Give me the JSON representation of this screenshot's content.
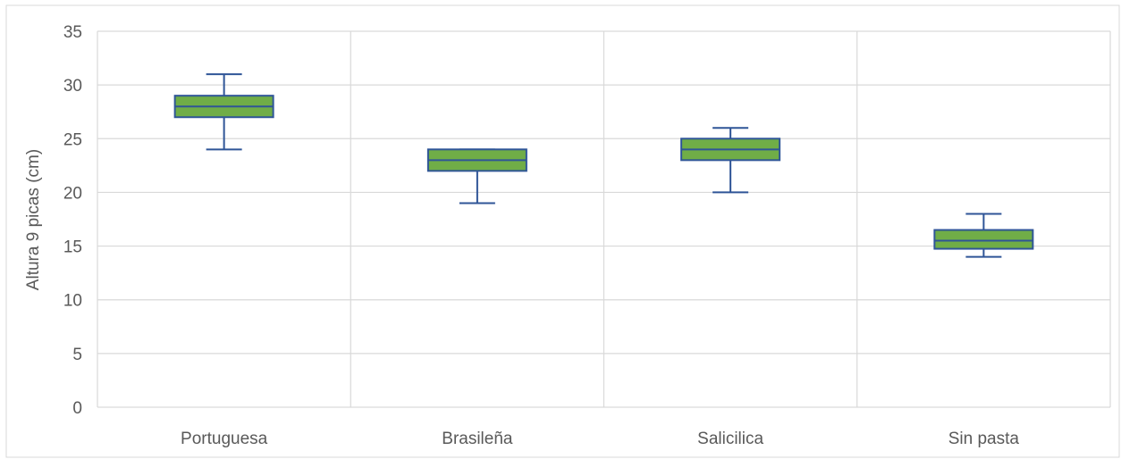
{
  "chart_data": {
    "type": "box",
    "title": "",
    "ylabel": "Altura 9 picas (cm)",
    "xlabel": "",
    "ylim": [
      0,
      35
    ],
    "yticks": [
      0,
      5,
      10,
      15,
      20,
      25,
      30,
      35
    ],
    "grid": true,
    "categories": [
      "Portuguesa",
      "Brasileña",
      "Salicilica",
      "Sin pasta"
    ],
    "boxes": [
      {
        "category": "Portuguesa",
        "min": 24,
        "q1": 27,
        "median": 28,
        "q3": 29,
        "max": 31
      },
      {
        "category": "Brasileña",
        "min": 19,
        "q1": 22,
        "median": 23,
        "q3": 24,
        "max": 24
      },
      {
        "category": "Salicilica",
        "min": 20,
        "q1": 23,
        "median": 24,
        "q3": 25,
        "max": 26
      },
      {
        "category": "Sin pasta",
        "min": 14,
        "q1": 14.75,
        "median": 15.5,
        "q3": 16.5,
        "max": 18
      }
    ],
    "colors": {
      "box_fill": "#70ad47",
      "box_stroke": "#2f5597",
      "grid": "#d9d9d9",
      "text": "#595959"
    }
  }
}
